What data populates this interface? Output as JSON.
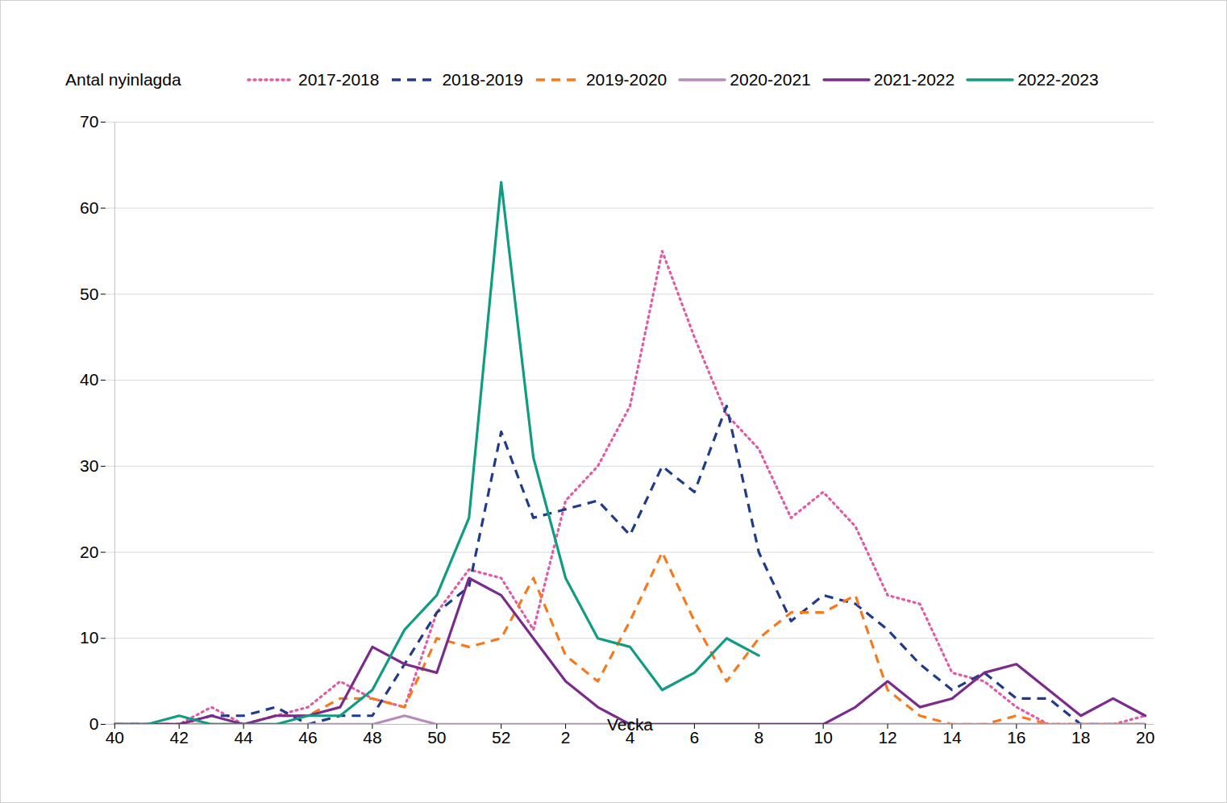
{
  "chart_data": {
    "type": "line",
    "y_label": "Antal nyinlagda",
    "x_label": "Vecka",
    "categories": [
      40,
      null,
      42,
      null,
      44,
      null,
      46,
      null,
      48,
      null,
      50,
      null,
      52,
      null,
      2,
      null,
      4,
      null,
      6,
      null,
      8,
      null,
      10,
      null,
      12,
      null,
      14,
      null,
      16,
      null,
      18,
      null,
      20
    ],
    "ylim": [
      0,
      70
    ],
    "yticks": [
      0,
      10,
      20,
      30,
      40,
      50,
      60,
      70
    ],
    "grid": true,
    "legend": "top",
    "series": [
      {
        "name": "2017-2018",
        "color": "#e05aa5",
        "line_style": "dotted",
        "values": [
          0,
          0,
          0,
          2,
          0,
          1,
          2,
          5,
          3,
          2,
          13,
          18,
          17,
          11,
          26,
          30,
          37,
          55,
          45,
          36,
          32,
          24,
          27,
          23,
          15,
          14,
          6,
          5,
          2,
          0,
          0,
          0,
          1
        ]
      },
      {
        "name": "2018-2019",
        "color": "#1f3b8a",
        "line_style": "dashed",
        "values": [
          0,
          0,
          0,
          1,
          1,
          2,
          0,
          1,
          1,
          7,
          13,
          16,
          34,
          24,
          25,
          26,
          22,
          30,
          27,
          37,
          20,
          12,
          15,
          14,
          11,
          7,
          4,
          6,
          3,
          3,
          0,
          0,
          0
        ]
      },
      {
        "name": "2019-2020",
        "color": "#f7791c",
        "line_style": "dashed",
        "values": [
          0,
          0,
          0,
          0,
          0,
          1,
          1,
          3,
          3,
          2,
          10,
          9,
          10,
          17,
          8,
          5,
          12,
          20,
          12,
          5,
          10,
          13,
          13,
          15,
          4,
          1,
          0,
          0,
          1,
          0,
          0,
          0,
          0
        ]
      },
      {
        "name": "2020-2021",
        "color": "#b68bb8",
        "line_style": "solid",
        "values": [
          0,
          0,
          0,
          0,
          0,
          0,
          0,
          0,
          0,
          1,
          0,
          0,
          0,
          0,
          0,
          0,
          0,
          0,
          0,
          0,
          0,
          0,
          0,
          0,
          0,
          0,
          0,
          0,
          0,
          0,
          0,
          0,
          0
        ]
      },
      {
        "name": "2021-2022",
        "color": "#7a2b8c",
        "line_style": "solid",
        "values": [
          0,
          0,
          0,
          1,
          0,
          1,
          1,
          2,
          9,
          7,
          6,
          17,
          15,
          10,
          5,
          2,
          0,
          0,
          0,
          0,
          0,
          0,
          0,
          2,
          5,
          2,
          3,
          6,
          7,
          4,
          1,
          3,
          1
        ]
      },
      {
        "name": "2022-2023",
        "color": "#0f9c80",
        "line_style": "solid",
        "values": [
          0,
          0,
          1,
          0,
          0,
          0,
          1,
          1,
          4,
          11,
          15,
          24,
          63,
          31,
          17,
          10,
          9,
          4,
          6,
          10,
          8,
          null,
          null,
          null,
          null,
          null,
          null,
          null,
          null,
          null,
          null,
          null,
          null
        ]
      }
    ]
  }
}
